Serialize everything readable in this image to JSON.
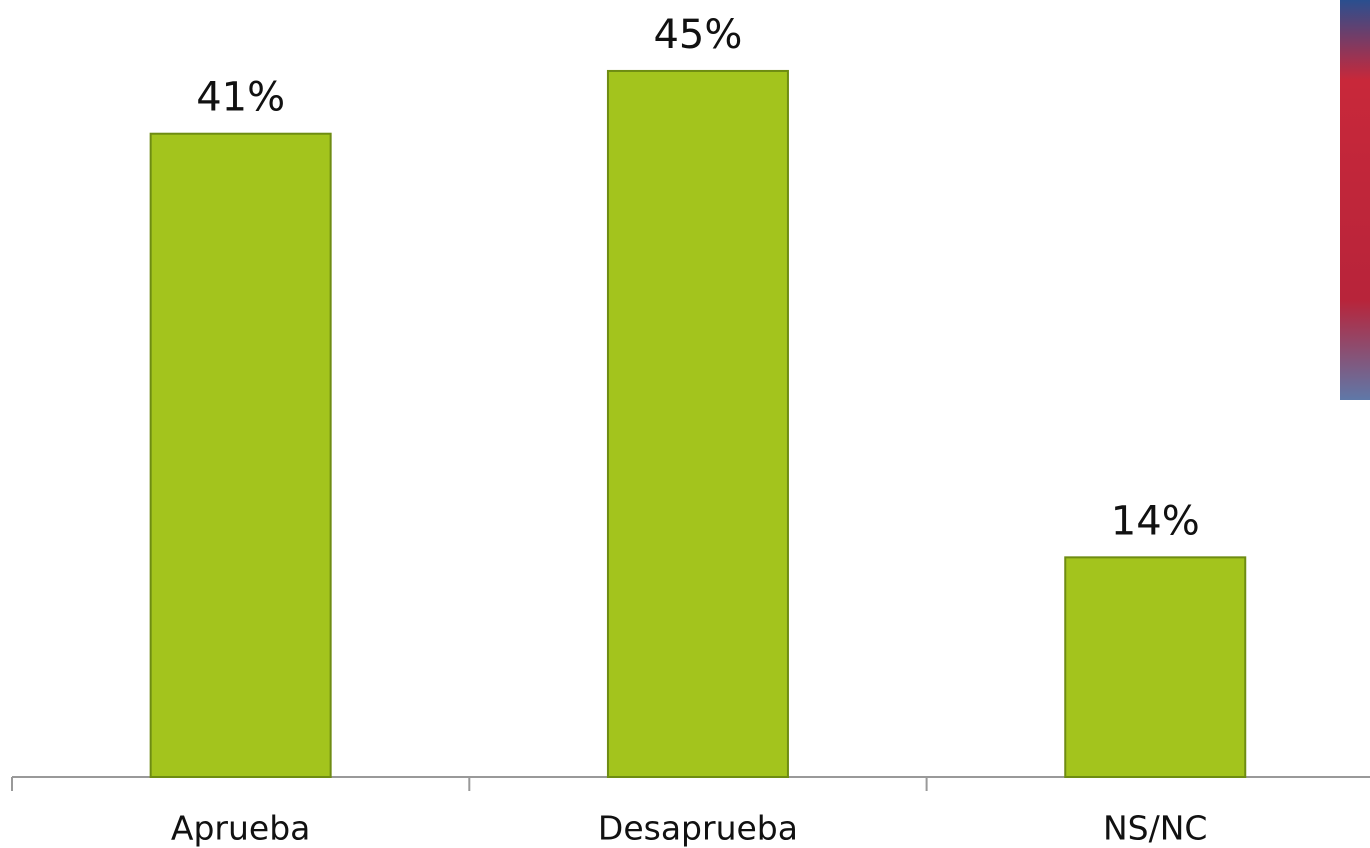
{
  "chart_data": {
    "type": "bar",
    "categories": [
      "Aprueba",
      "Desaprueba",
      "NS/NC"
    ],
    "values": [
      41,
      45,
      14
    ],
    "value_labels": [
      "41%",
      "45%",
      "14%"
    ],
    "color": "#a3c41d"
  }
}
